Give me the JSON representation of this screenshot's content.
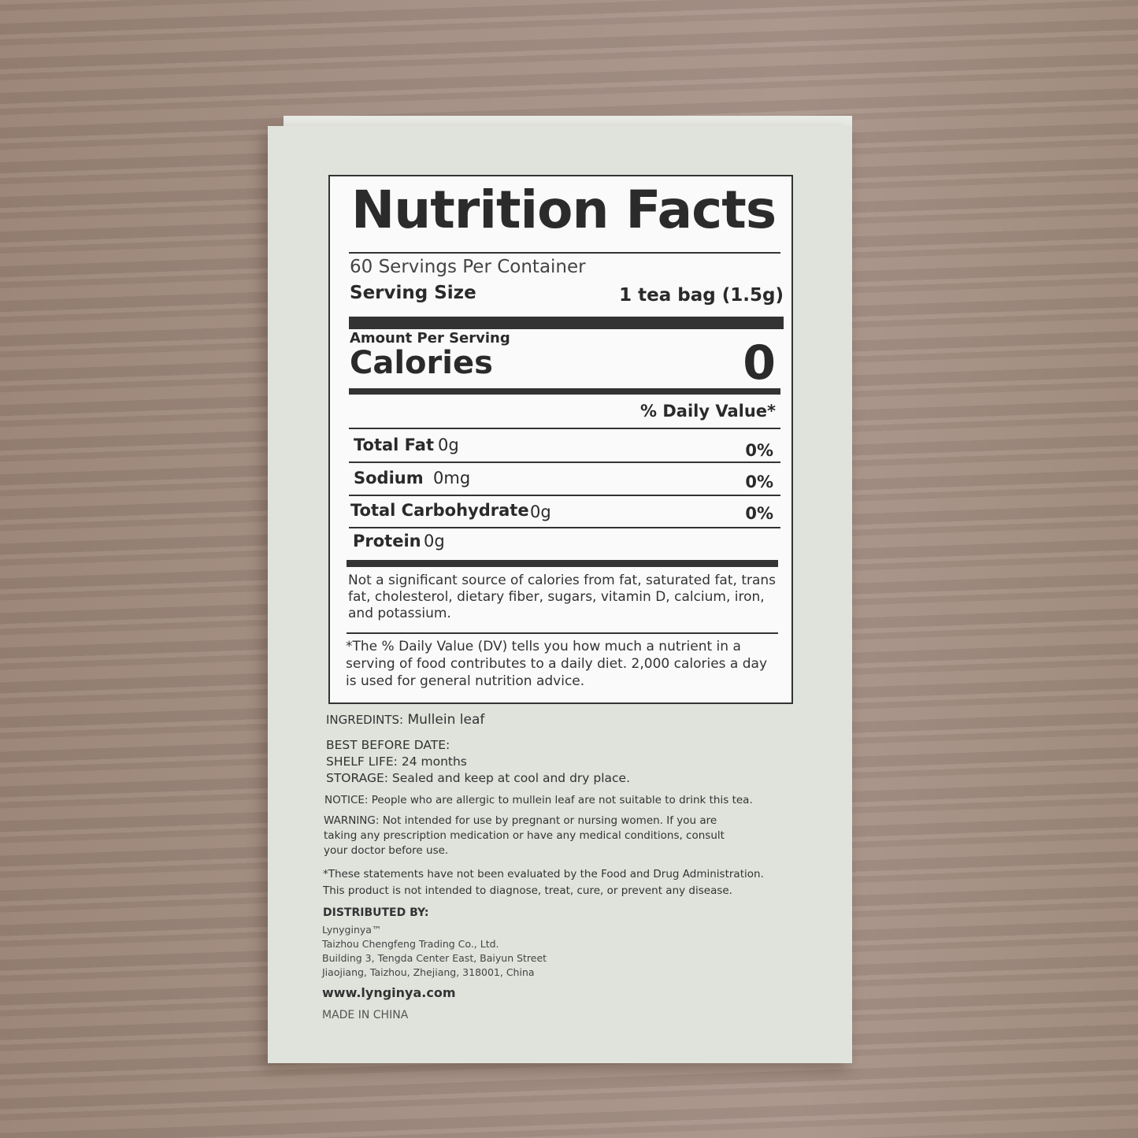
{
  "label": {
    "title": "Nutrition Facts",
    "servings": "60 Servings Per Container",
    "serving_size_label": "Serving Size",
    "serving_size_value": "1 tea bag (1.5g)",
    "amount_per_serving": "Amount Per Serving",
    "calories_label": "Calories",
    "calories_value": "0",
    "daily_value_header": "% Daily Value*",
    "nutrients": [
      {
        "name": "Total Fat",
        "amount": "0g",
        "dv": "0%"
      },
      {
        "name": "Sodium",
        "amount": "0mg",
        "dv": "0%"
      },
      {
        "name": "Total Carbohydrate",
        "amount": "0g",
        "dv": "0%"
      },
      {
        "name": "Protein",
        "amount": "0g",
        "dv": ""
      }
    ],
    "not_significant": [
      "Not a significant source of calories from fat, saturated fat, trans",
      "fat, cholesterol, dietary fiber, sugars, vitamin D, calcium, iron,",
      "and potassium."
    ],
    "footnote": [
      "*The % Daily Value (DV) tells you how much a nutrient in a",
      "serving of food contributes to a daily diet. 2,000 calories a day",
      "is used for general nutrition advice."
    ]
  },
  "info": {
    "ingredients_label": "INGREDINTS:",
    "ingredients": "Mullein leaf",
    "best_before": "BEST BEFORE DATE:",
    "shelf_life": "SHELF LIFE: 24 months",
    "storage": "STORAGE: Sealed and keep at cool and dry place.",
    "notice": "NOTICE: People who are allergic to mullein leaf are not suitable to drink this tea.",
    "warning": [
      "WARNING: Not intended for use by pregnant or nursing women. If you are",
      "taking any prescription medication or have any medical conditions, consult",
      "your doctor before use."
    ],
    "fda": [
      "*These statements have not been evaluated by the Food and Drug Administration.",
      "This product is not intended to diagnose, treat, cure, or prevent any disease."
    ],
    "distributed_by": "DISTRIBUTED BY:",
    "brand": "Lynyginya™",
    "company": "Taizhou Chengfeng Trading Co., Ltd.",
    "address1": "Building 3, Tengda Center East, Baiyun Street",
    "address2": "Jiaojiang, Taizhou, Zhejiang, 318001, China",
    "website": "www.lynginya.com",
    "origin": "MADE IN CHINA"
  }
}
